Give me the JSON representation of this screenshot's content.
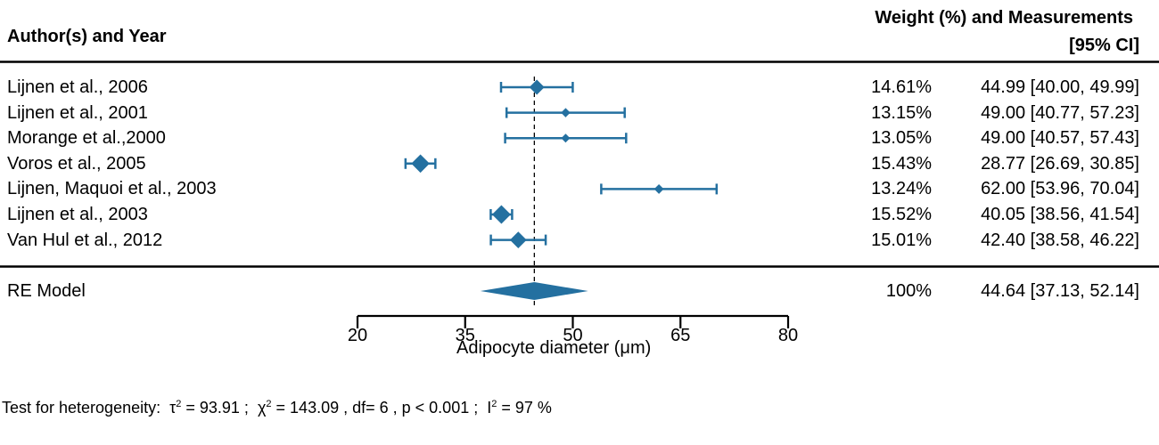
{
  "header": {
    "left": "Author(s) and Year",
    "right_line1": "Weight (%) and Measurements",
    "right_line2": "[95% CI]"
  },
  "chart_data": {
    "type": "forest",
    "xlabel_prefix": "Adipocyte diameter (",
    "xlabel_mu": "μ",
    "xlabel_suffix": "m)",
    "xlim": [
      20,
      80
    ],
    "xticks": [
      "20",
      "35",
      "50",
      "65",
      "80"
    ],
    "reference_line": 44.64,
    "color": "#2470a0",
    "studies": [
      {
        "label": "Lijnen et al., 2006",
        "estimate": 44.99,
        "lower": 40.0,
        "upper": 49.99,
        "weight": "14.61%",
        "ci_text": "44.99 [40.00, 49.99]"
      },
      {
        "label": "Lijnen et al., 2001",
        "estimate": 49.0,
        "lower": 40.77,
        "upper": 57.23,
        "weight": "13.15%",
        "ci_text": "49.00 [40.77, 57.23]"
      },
      {
        "label": "Morange et al.,2000",
        "estimate": 49.0,
        "lower": 40.57,
        "upper": 57.43,
        "weight": "13.05%",
        "ci_text": "49.00 [40.57, 57.43]"
      },
      {
        "label": "Voros et al., 2005",
        "estimate": 28.77,
        "lower": 26.69,
        "upper": 30.85,
        "weight": "15.43%",
        "ci_text": "28.77 [26.69, 30.85]"
      },
      {
        "label": "Lijnen, Maquoi et al., 2003",
        "estimate": 62.0,
        "lower": 53.96,
        "upper": 70.04,
        "weight": "13.24%",
        "ci_text": "62.00 [53.96, 70.04]"
      },
      {
        "label": "Lijnen et al., 2003",
        "estimate": 40.05,
        "lower": 38.56,
        "upper": 41.54,
        "weight": "15.52%",
        "ci_text": "40.05 [38.56, 41.54]"
      },
      {
        "label": "Van Hul et al., 2012",
        "estimate": 42.4,
        "lower": 38.58,
        "upper": 46.22,
        "weight": "15.01%",
        "ci_text": "42.40 [38.58, 46.22]"
      }
    ],
    "summary": {
      "label": "RE Model",
      "estimate": 44.64,
      "lower": 37.13,
      "upper": 52.14,
      "weight": "100%",
      "ci_text": "44.64 [37.13, 52.14]"
    }
  },
  "heterogeneity": {
    "prefix": "Test for heterogeneity:",
    "tau_sym": "τ",
    "tau_val": " = 93.91 ;",
    "chi_sym": "χ",
    "chi_val": " = 143.09 , df= 6 ,  p < 0.001 ;",
    "i_sym": "I",
    "i_val": " = 97 %",
    "sup": "2"
  }
}
